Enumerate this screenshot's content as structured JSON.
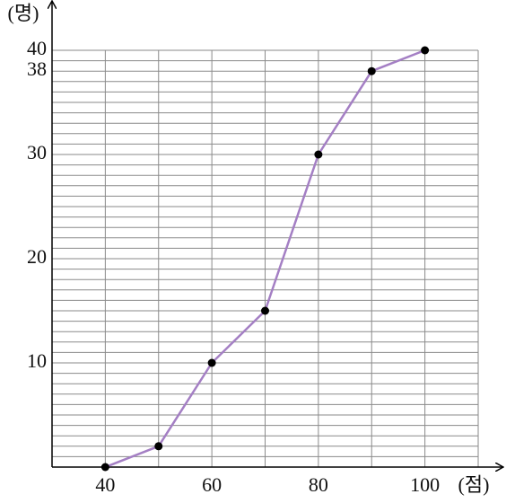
{
  "chart_data": {
    "type": "line",
    "y_axis_label": "(명)",
    "x_axis_label": "(점)",
    "x": [
      40,
      50,
      60,
      70,
      80,
      90,
      100
    ],
    "series": [
      {
        "color": "#a47fc4",
        "values": [
          0,
          2,
          10,
          15,
          30,
          38,
          40
        ]
      }
    ],
    "xlim": [
      30,
      110
    ],
    "ylim": [
      0,
      40
    ],
    "xticks": [
      40,
      60,
      80,
      100
    ],
    "yticks": [
      10,
      20,
      30,
      38,
      40
    ],
    "grid": true
  }
}
